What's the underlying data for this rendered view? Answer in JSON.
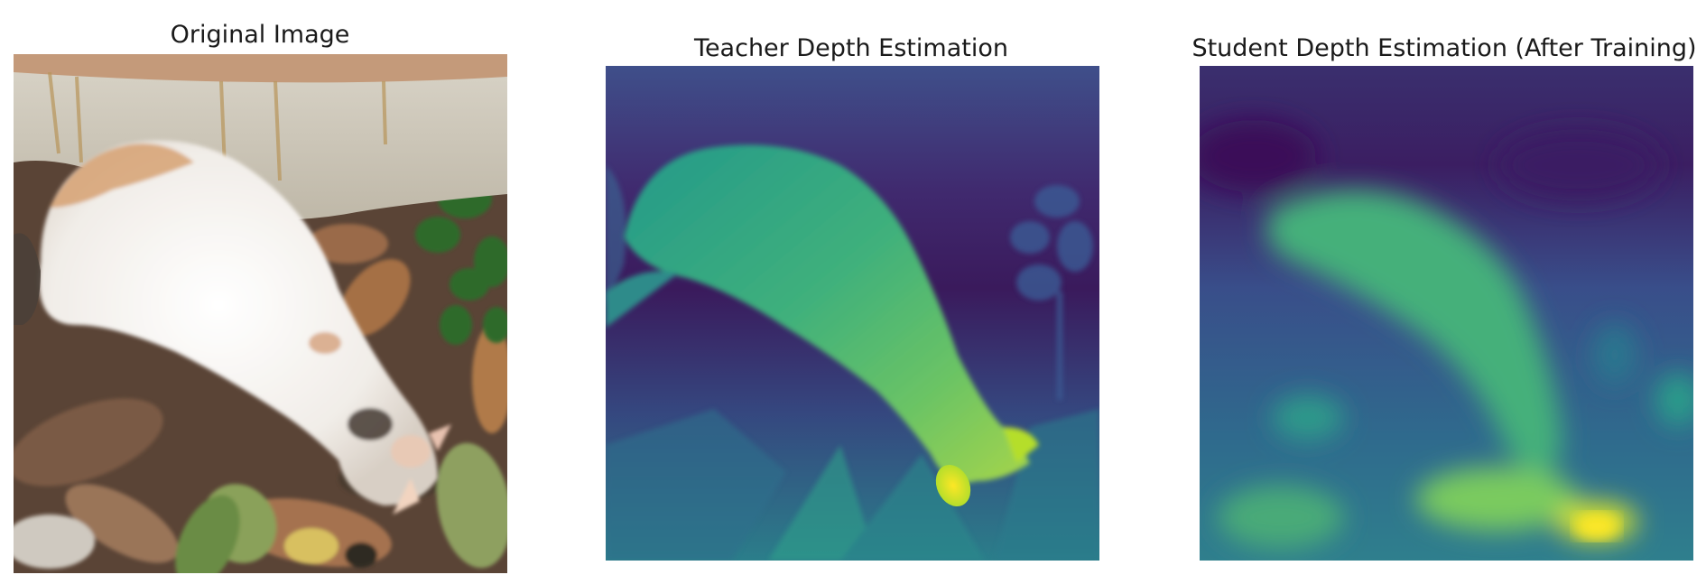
{
  "panels": [
    {
      "title": "Original Image"
    },
    {
      "title": "Teacher Depth Estimation"
    },
    {
      "title": "Student Depth Estimation (After Training)"
    }
  ],
  "colormap": "viridis",
  "colors": {
    "viridis_low": "#440154",
    "viridis_mid": "#21918c",
    "viridis_high": "#fde725"
  }
}
